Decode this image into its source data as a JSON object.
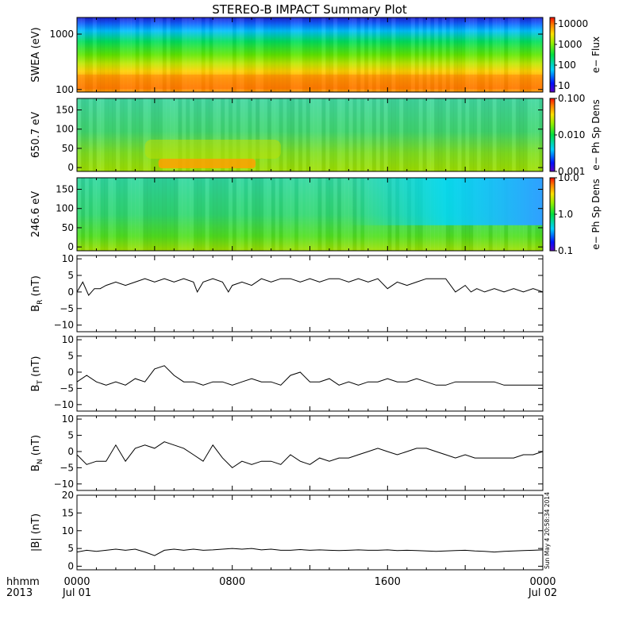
{
  "title": "STEREO-B IMPACT Summary Plot",
  "stamp": "Sun May  4 20:58:34 2014",
  "time_axis": {
    "row1_label": "hhmm",
    "row2_label": "2013",
    "ticks": [
      {
        "t": 0,
        "main": "0000",
        "sub": "Jul 01"
      },
      {
        "t": 8,
        "main": "0800",
        "sub": ""
      },
      {
        "t": 16,
        "main": "1600",
        "sub": ""
      },
      {
        "t": 24,
        "main": "0000",
        "sub": "Jul 02"
      }
    ]
  },
  "colors": {
    "line": "#000000",
    "background": "#ffffff"
  },
  "chart_data": [
    {
      "type": "heatmap",
      "id": "swea",
      "ylabel": "SWEA (eV)",
      "ylim": [
        90,
        2000
      ],
      "yscale": "log",
      "yticks": [
        {
          "v": 100,
          "label": "100"
        },
        {
          "v": 1000,
          "label": "1000"
        }
      ],
      "colorbar": {
        "label": "e− Flux",
        "scale": "log",
        "range": [
          5,
          20000
        ],
        "ticks": [
          {
            "v": 10,
            "label": "10"
          },
          {
            "v": 100,
            "label": "100"
          },
          {
            "v": 1000,
            "label": "1000"
          },
          {
            "v": 10000,
            "label": "10000"
          }
        ]
      },
      "description_bands": "Energy-time flux spectrogram"
    },
    {
      "type": "heatmap",
      "id": "pad650",
      "ylabel": "650.7 eV",
      "ylim": [
        -10,
        180
      ],
      "yscale": "linear",
      "yticks": [
        {
          "v": 0,
          "label": "0"
        },
        {
          "v": 50,
          "label": "50"
        },
        {
          "v": 100,
          "label": "100"
        },
        {
          "v": 150,
          "label": "150"
        }
      ],
      "colorbar": {
        "label": "e− Ph Sp Dens",
        "scale": "log",
        "range": [
          0.001,
          0.1
        ],
        "ticks": [
          {
            "v": 0.001,
            "label": "0.001"
          },
          {
            "v": 0.01,
            "label": "0.010"
          },
          {
            "v": 0.1,
            "label": "0.100"
          }
        ]
      }
    },
    {
      "type": "heatmap",
      "id": "pad246",
      "ylabel": "246.6 eV",
      "ylim": [
        -10,
        180
      ],
      "yscale": "linear",
      "yticks": [
        {
          "v": 0,
          "label": "0"
        },
        {
          "v": 50,
          "label": "50"
        },
        {
          "v": 100,
          "label": "100"
        },
        {
          "v": 150,
          "label": "150"
        }
      ],
      "colorbar": {
        "label": "e− Ph Sp Dens",
        "scale": "log",
        "range": [
          0.1,
          10
        ],
        "ticks": [
          {
            "v": 0.1,
            "label": "0.1"
          },
          {
            "v": 1,
            "label": "1.0"
          },
          {
            "v": 10,
            "label": "10.0"
          }
        ]
      }
    },
    {
      "type": "line",
      "id": "br",
      "ylabel": "B",
      "ylabel_sub": "R",
      "ylabel_unit": " (nT)",
      "ylim": [
        -12,
        11
      ],
      "yticks": [
        {
          "v": -10,
          "label": "−10"
        },
        {
          "v": -5,
          "label": "−5"
        },
        {
          "v": 0,
          "label": "0"
        },
        {
          "v": 5,
          "label": "5"
        },
        {
          "v": 10,
          "label": "10"
        }
      ],
      "x": [
        0,
        0.3,
        0.6,
        0.9,
        1.2,
        1.5,
        2,
        2.5,
        3,
        3.5,
        4,
        4.5,
        5,
        5.5,
        6,
        6.2,
        6.5,
        7,
        7.5,
        7.8,
        8,
        8.5,
        9,
        9.5,
        10,
        10.5,
        11,
        11.5,
        12,
        12.5,
        13,
        13.5,
        14,
        14.5,
        15,
        15.5,
        16,
        16.5,
        17,
        17.5,
        18,
        18.5,
        19,
        19.5,
        20,
        20.3,
        20.6,
        21,
        21.5,
        22,
        22.5,
        23,
        23.5,
        24
      ],
      "values": [
        0,
        3,
        -1,
        1,
        1,
        2,
        3,
        2,
        3,
        4,
        3,
        4,
        3,
        4,
        3,
        0,
        3,
        4,
        3,
        0,
        2,
        3,
        2,
        4,
        3,
        4,
        4,
        3,
        4,
        3,
        4,
        4,
        3,
        4,
        3,
        4,
        1,
        3,
        2,
        3,
        4,
        4,
        4,
        0,
        2,
        0,
        1,
        0,
        1,
        0,
        1,
        0,
        1,
        0
      ]
    },
    {
      "type": "line",
      "id": "bt",
      "ylabel": "B",
      "ylabel_sub": "T",
      "ylabel_unit": " (nT)",
      "ylim": [
        -12,
        11
      ],
      "yticks": [
        {
          "v": -10,
          "label": "−10"
        },
        {
          "v": -5,
          "label": "−5"
        },
        {
          "v": 0,
          "label": "0"
        },
        {
          "v": 5,
          "label": "5"
        },
        {
          "v": 10,
          "label": "10"
        }
      ],
      "x": [
        0,
        0.5,
        1,
        1.5,
        2,
        2.5,
        3,
        3.5,
        4,
        4.5,
        5,
        5.5,
        6,
        6.5,
        7,
        7.5,
        8,
        8.5,
        9,
        9.5,
        10,
        10.5,
        11,
        11.5,
        12,
        12.5,
        13,
        13.5,
        14,
        14.5,
        15,
        15.5,
        16,
        16.5,
        17,
        17.5,
        18,
        18.5,
        19,
        19.5,
        20,
        20.5,
        21,
        21.5,
        22,
        22.5,
        23,
        23.5,
        24
      ],
      "values": [
        -3,
        -1,
        -3,
        -4,
        -3,
        -4,
        -2,
        -3,
        1,
        2,
        -1,
        -3,
        -3,
        -4,
        -3,
        -3,
        -4,
        -3,
        -2,
        -3,
        -3,
        -4,
        -1,
        0,
        -3,
        -3,
        -2,
        -4,
        -3,
        -4,
        -3,
        -3,
        -2,
        -3,
        -3,
        -2,
        -3,
        -4,
        -4,
        -3,
        -3,
        -3,
        -3,
        -3,
        -4,
        -4,
        -4,
        -4,
        -4
      ]
    },
    {
      "type": "line",
      "id": "bn",
      "ylabel": "B",
      "ylabel_sub": "N",
      "ylabel_unit": " (nT)",
      "ylim": [
        -12,
        11
      ],
      "yticks": [
        {
          "v": -10,
          "label": "−10"
        },
        {
          "v": -5,
          "label": "−5"
        },
        {
          "v": 0,
          "label": "0"
        },
        {
          "v": 5,
          "label": "5"
        },
        {
          "v": 10,
          "label": "10"
        }
      ],
      "x": [
        0,
        0.5,
        1,
        1.5,
        2,
        2.5,
        3,
        3.5,
        4,
        4.5,
        5,
        5.5,
        6,
        6.5,
        7,
        7.5,
        8,
        8.5,
        9,
        9.5,
        10,
        10.5,
        11,
        11.5,
        12,
        12.5,
        13,
        13.5,
        14,
        14.5,
        15,
        15.5,
        16,
        16.5,
        17,
        17.5,
        18,
        18.5,
        19,
        19.5,
        20,
        20.5,
        21,
        21.5,
        22,
        22.5,
        23,
        23.5,
        24
      ],
      "values": [
        -1,
        -4,
        -3,
        -3,
        2,
        -3,
        1,
        2,
        1,
        3,
        2,
        1,
        -1,
        -3,
        2,
        -2,
        -5,
        -3,
        -4,
        -3,
        -3,
        -4,
        -1,
        -3,
        -4,
        -2,
        -3,
        -2,
        -2,
        -1,
        0,
        1,
        0,
        -1,
        0,
        1,
        1,
        0,
        -1,
        -2,
        -1,
        -2,
        -2,
        -2,
        -2,
        -2,
        -1,
        -1,
        0
      ]
    },
    {
      "type": "line",
      "id": "bmag",
      "ylabel": "|B| (nT)",
      "ylim": [
        -1,
        20
      ],
      "yticks": [
        {
          "v": 0,
          "label": "0"
        },
        {
          "v": 5,
          "label": "5"
        },
        {
          "v": 10,
          "label": "10"
        },
        {
          "v": 15,
          "label": "15"
        },
        {
          "v": 20,
          "label": "20"
        }
      ],
      "x": [
        0,
        0.5,
        1,
        1.5,
        2,
        2.5,
        3,
        3.5,
        4,
        4.5,
        5,
        5.5,
        6,
        6.5,
        7,
        7.5,
        8,
        8.5,
        9,
        9.5,
        10,
        10.5,
        11,
        11.5,
        12,
        12.5,
        13,
        13.5,
        14,
        14.5,
        15,
        15.5,
        16,
        16.5,
        17,
        17.5,
        18,
        18.5,
        19,
        19.5,
        20,
        20.5,
        21,
        21.5,
        22,
        22.5,
        23,
        23.5,
        24
      ],
      "values": [
        4,
        4.5,
        4.2,
        4.5,
        4.8,
        4.5,
        4.8,
        4,
        3,
        4.5,
        4.8,
        4.5,
        4.8,
        4.5,
        4.6,
        4.8,
        5,
        4.8,
        5,
        4.6,
        4.8,
        4.5,
        4.5,
        4.7,
        4.5,
        4.6,
        4.5,
        4.4,
        4.5,
        4.6,
        4.5,
        4.5,
        4.6,
        4.4,
        4.5,
        4.4,
        4.3,
        4.2,
        4.3,
        4.4,
        4.5,
        4.3,
        4.2,
        4,
        4.2,
        4.3,
        4.4,
        4.5,
        4.6
      ]
    }
  ]
}
